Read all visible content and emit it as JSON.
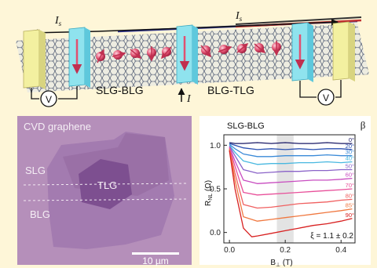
{
  "colors": {
    "background": "#fef6d8",
    "lattice": "#5a6478",
    "gold_contact": "#f3f0a0",
    "cyan_contact": "#8fe3ee",
    "spin_red": "#e05070",
    "micrograph_bg": "#b58fba",
    "blg": "#a37bb0",
    "tlg": "#7d4f90",
    "hbn_like": "#8f6aa3"
  },
  "schematic": {
    "current_top_left": "I",
    "current_top_left_sub": "s",
    "current_top_right": "I",
    "current_top_right_sub": "s",
    "label_left": "SLG-BLG",
    "label_right": "BLG-TLG",
    "current_in": "I",
    "voltmeter_symbol": "V"
  },
  "micrograph": {
    "title": "CVD graphene",
    "label_slg": "SLG",
    "label_blg": "BLG",
    "label_tlg": "TLG",
    "scalebar": "10 µm"
  },
  "chart_data": {
    "type": "line",
    "title": "SLG-BLG",
    "ylabel_main": "R",
    "ylabel_sub": "NL",
    "ylabel_unit": " (Ω)",
    "xlabel_main": "B",
    "xlabel_sub": "⊥",
    "xlabel_unit": " (T)",
    "xlim": [
      -0.02,
      0.45
    ],
    "ylim": [
      -0.12,
      1.12
    ],
    "xticks": [
      0.0,
      0.2,
      0.4
    ],
    "xtick_labels": [
      "0.0",
      "0.2",
      "0.4"
    ],
    "yticks": [
      0.0,
      0.5,
      1.0
    ],
    "ytick_labels": [
      "0.0",
      "0.5",
      "1.0"
    ],
    "legend_title": "β",
    "annotation": "ξ = 1.1 ± 0.2",
    "shaded_band": [
      0.17,
      0.23
    ],
    "series": [
      {
        "name": "0°",
        "color": "#1a1a66",
        "x": [
          0,
          0.02,
          0.05,
          0.1,
          0.15,
          0.2,
          0.25,
          0.3,
          0.35,
          0.4,
          0.44
        ],
        "values": [
          1.03,
          1.02,
          1.02,
          1.03,
          1.02,
          1.03,
          1.02,
          1.02,
          1.03,
          1.02,
          1.02
        ]
      },
      {
        "name": "20°",
        "color": "#2a4fb0",
        "x": [
          0,
          0.02,
          0.05,
          0.1,
          0.15,
          0.2,
          0.25,
          0.3,
          0.35,
          0.4,
          0.44
        ],
        "values": [
          1.02,
          1.0,
          0.97,
          0.95,
          0.96,
          0.95,
          0.96,
          0.95,
          0.96,
          0.96,
          0.95
        ]
      },
      {
        "name": "30°",
        "color": "#3a8ad8",
        "x": [
          0,
          0.02,
          0.05,
          0.1,
          0.15,
          0.2,
          0.25,
          0.3,
          0.35,
          0.4,
          0.44
        ],
        "values": [
          1.01,
          0.96,
          0.9,
          0.87,
          0.87,
          0.88,
          0.88,
          0.88,
          0.89,
          0.88,
          0.88
        ]
      },
      {
        "name": "40°",
        "color": "#48b8e0",
        "x": [
          0,
          0.02,
          0.05,
          0.1,
          0.15,
          0.2,
          0.25,
          0.3,
          0.35,
          0.4,
          0.44
        ],
        "values": [
          1.0,
          0.92,
          0.82,
          0.78,
          0.79,
          0.79,
          0.8,
          0.8,
          0.81,
          0.8,
          0.81
        ]
      },
      {
        "name": "50°",
        "color": "#8a63c8",
        "x": [
          0,
          0.02,
          0.05,
          0.1,
          0.15,
          0.2,
          0.25,
          0.3,
          0.35,
          0.4,
          0.44
        ],
        "values": [
          0.99,
          0.88,
          0.72,
          0.68,
          0.69,
          0.7,
          0.7,
          0.71,
          0.71,
          0.72,
          0.72
        ]
      },
      {
        "name": "60°",
        "color": "#c84cc0",
        "x": [
          0,
          0.02,
          0.05,
          0.1,
          0.15,
          0.2,
          0.25,
          0.3,
          0.35,
          0.4,
          0.44
        ],
        "values": [
          0.98,
          0.82,
          0.6,
          0.56,
          0.57,
          0.58,
          0.59,
          0.6,
          0.6,
          0.61,
          0.62
        ]
      },
      {
        "name": "70°",
        "color": "#e8509a",
        "x": [
          0,
          0.02,
          0.05,
          0.1,
          0.15,
          0.2,
          0.25,
          0.3,
          0.35,
          0.4,
          0.44
        ],
        "values": [
          0.97,
          0.76,
          0.46,
          0.43,
          0.44,
          0.45,
          0.46,
          0.47,
          0.48,
          0.49,
          0.5
        ]
      },
      {
        "name": "80°",
        "color": "#f06060",
        "x": [
          0,
          0.02,
          0.05,
          0.1,
          0.15,
          0.2,
          0.25,
          0.3,
          0.35,
          0.4,
          0.44
        ],
        "values": [
          0.96,
          0.68,
          0.32,
          0.28,
          0.29,
          0.31,
          0.33,
          0.34,
          0.35,
          0.37,
          0.38
        ]
      },
      {
        "name": "85°",
        "color": "#f07840",
        "x": [
          0,
          0.02,
          0.05,
          0.1,
          0.15,
          0.2,
          0.25,
          0.3,
          0.35,
          0.4,
          0.44
        ],
        "values": [
          0.95,
          0.6,
          0.18,
          0.13,
          0.15,
          0.17,
          0.19,
          0.21,
          0.23,
          0.25,
          0.27
        ]
      },
      {
        "name": "90°",
        "color": "#d82020",
        "x": [
          0,
          0.02,
          0.05,
          0.08,
          0.1,
          0.15,
          0.2,
          0.25,
          0.3,
          0.35,
          0.4,
          0.44
        ],
        "values": [
          0.94,
          0.5,
          0.05,
          -0.05,
          -0.04,
          -0.01,
          0.02,
          0.05,
          0.08,
          0.1,
          0.13,
          0.16
        ]
      }
    ]
  }
}
